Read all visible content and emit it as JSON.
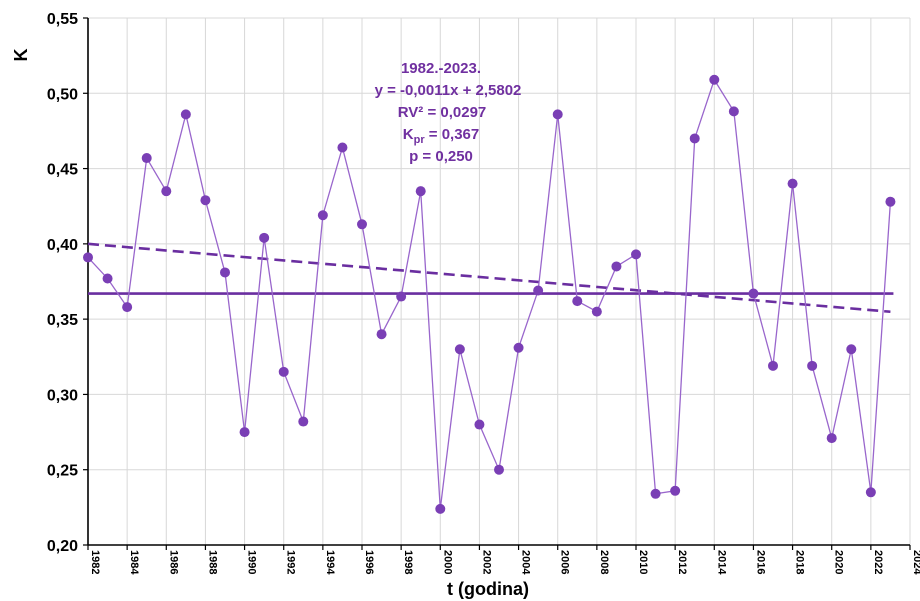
{
  "colors": {
    "series": "#9966cc",
    "marker": "#7a3fb5",
    "mean": "#6a2ea0",
    "trend": "#6a2ea0",
    "annotation": "#7030a0"
  },
  "chart_data": {
    "type": "line",
    "xlabel": "t (godina)",
    "ylabel": "K",
    "xlim": [
      1982,
      2024
    ],
    "ylim": [
      0.2,
      0.55
    ],
    "grid": true,
    "y_ticks": [
      "0,20",
      "0,25",
      "0,30",
      "0,35",
      "0,40",
      "0,45",
      "0,50",
      "0,55"
    ],
    "x_ticks": [
      "1982",
      "1984",
      "1986",
      "1988",
      "1990",
      "1992",
      "1994",
      "1996",
      "1998",
      "2000",
      "2002",
      "2004",
      "2006",
      "2008",
      "2010",
      "2012",
      "2014",
      "2016",
      "2018",
      "2020",
      "2022",
      "2024"
    ],
    "x": [
      1982,
      1983,
      1984,
      1985,
      1986,
      1987,
      1988,
      1989,
      1990,
      1991,
      1992,
      1993,
      1994,
      1995,
      1996,
      1997,
      1998,
      1999,
      2000,
      2001,
      2002,
      2003,
      2004,
      2005,
      2006,
      2007,
      2008,
      2009,
      2010,
      2011,
      2012,
      2013,
      2014,
      2015,
      2016,
      2017,
      2018,
      2019,
      2020,
      2021,
      2022,
      2023
    ],
    "values": [
      0.391,
      0.377,
      0.358,
      0.457,
      0.435,
      0.486,
      0.429,
      0.381,
      0.275,
      0.404,
      0.315,
      0.282,
      0.419,
      0.464,
      0.413,
      0.34,
      0.365,
      0.435,
      0.224,
      0.33,
      0.28,
      0.25,
      0.331,
      0.369,
      0.486,
      0.362,
      0.355,
      0.385,
      0.393,
      0.234,
      0.236,
      0.47,
      0.509,
      0.488,
      0.367,
      0.319,
      0.44,
      0.319,
      0.271,
      0.33,
      0.235,
      0.428
    ],
    "mean": 0.367,
    "trend": {
      "slope": -0.0011,
      "intercept": 2.5802
    },
    "annotation": {
      "period": "1982.-2023.",
      "equation": "y = -0,0011x + 2,5802",
      "rv2": "RV² = 0,0297",
      "kpr_label": "K",
      "kpr_sub": "pr",
      "kpr_value": " = 0,367",
      "p": "p = 0,250"
    }
  }
}
